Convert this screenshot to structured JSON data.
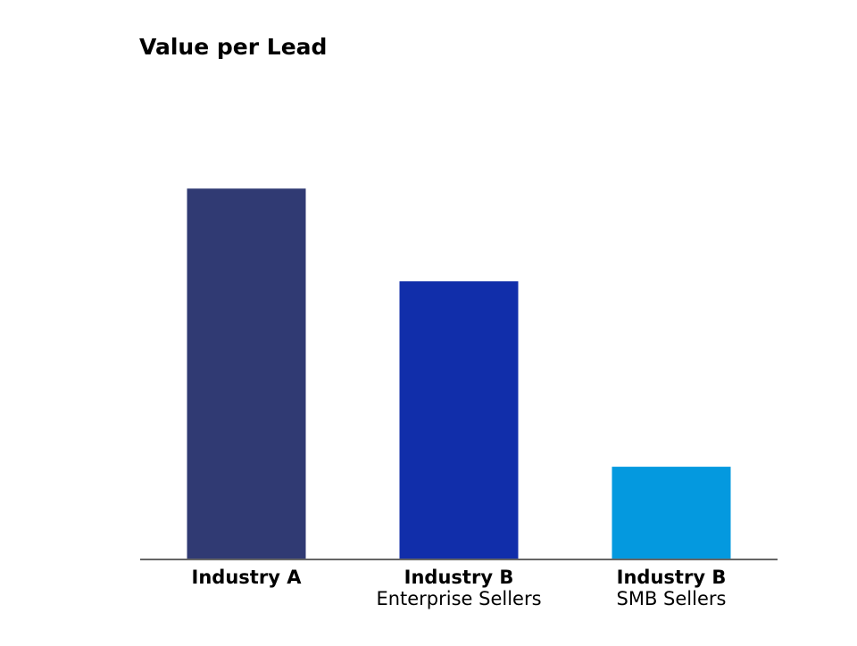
{
  "chart_data": {
    "type": "bar",
    "title": "Value per Lead",
    "xlabel": "",
    "ylabel": "",
    "categories": [
      {
        "label": "Industry A",
        "sublabel": ""
      },
      {
        "label": "Industry B",
        "sublabel": "Enterprise Sellers"
      },
      {
        "label": "Industry B",
        "sublabel": "SMB Sellers"
      }
    ],
    "values": [
      100,
      75,
      25
    ],
    "ylim": [
      0,
      115
    ],
    "grid": false,
    "legend": "none",
    "axis_color": "#666666"
  },
  "bar_colors": [
    "#303a73",
    "#112eaa",
    "#0499df"
  ]
}
